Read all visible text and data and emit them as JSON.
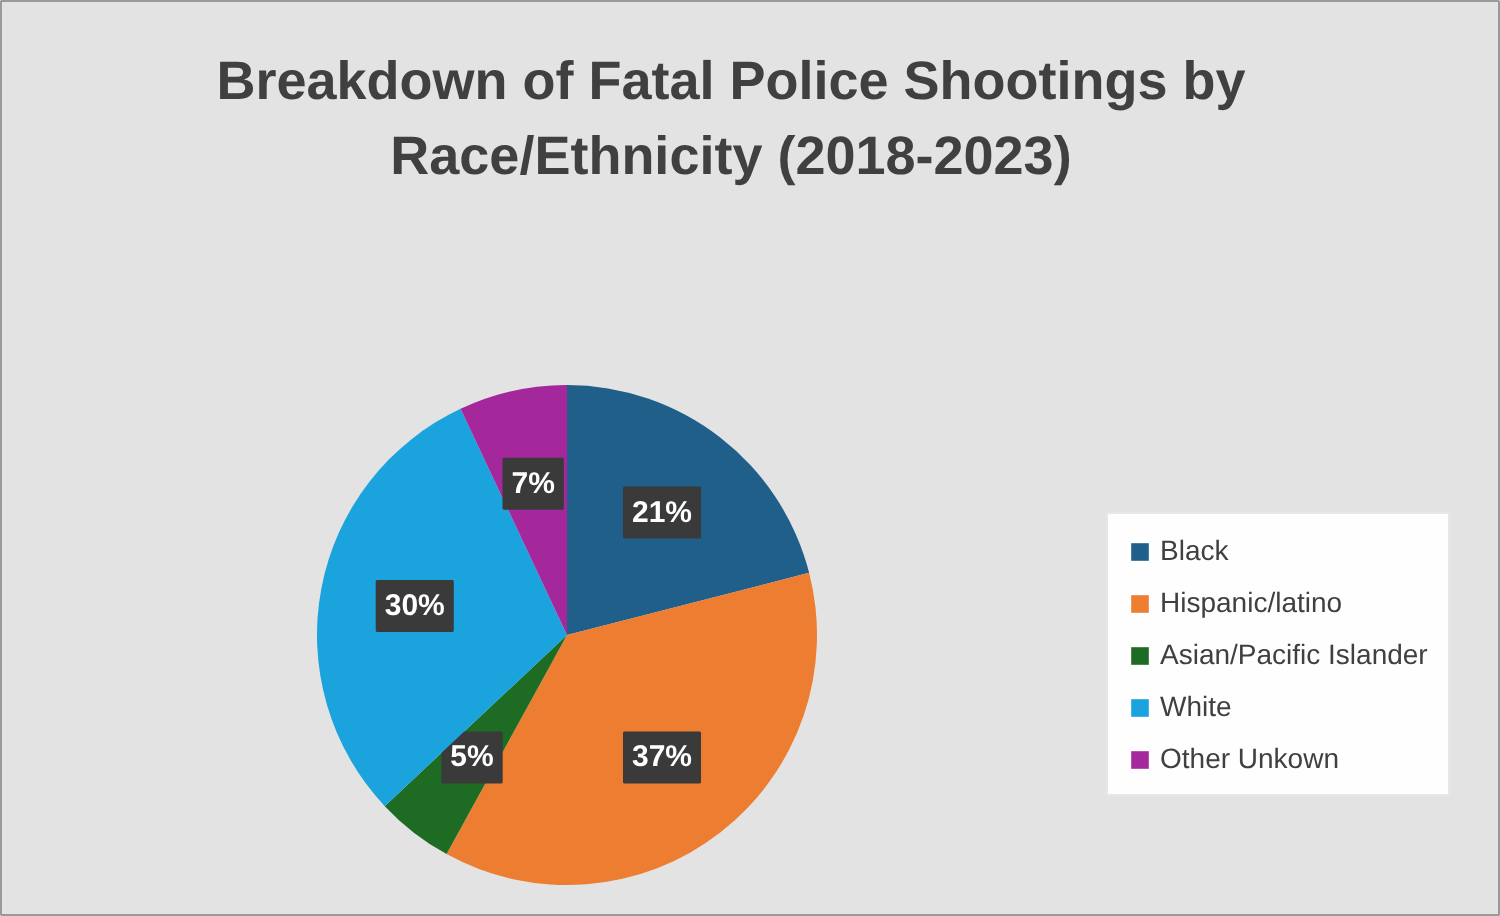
{
  "chart_data": {
    "type": "pie",
    "title": "Breakdown of Fatal Police Shootings by Race/Ethnicity (2018-2023)",
    "categories": [
      "Black",
      "Hispanic/latino",
      "Asian/Pacific Islander",
      "White",
      "Other Unkown"
    ],
    "values": [
      21,
      37,
      5,
      30,
      7
    ],
    "colors": [
      "#1f5f8a",
      "#ed7d31",
      "#1e6b24",
      "#1aa3dd",
      "#a4279b"
    ],
    "value_labels": [
      "21%",
      "37%",
      "5%",
      "30%",
      "7%"
    ],
    "legend": "right"
  }
}
